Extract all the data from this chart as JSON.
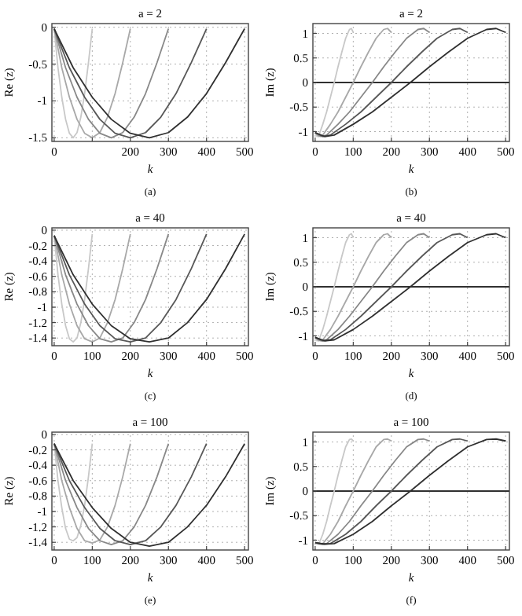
{
  "chart_data": [
    {
      "type": "line",
      "title": "a = 2",
      "xlabel": "k",
      "ylabel": "Re (z)",
      "annotations": [
        "(a)"
      ],
      "xlim": [
        -6,
        510
      ],
      "xticks": [
        0,
        200,
        300,
        400,
        500,
        {
          "value": 100,
          "label": null
        }
      ],
      "ylim": [
        -1.55,
        0.05
      ],
      "yticks": [
        0,
        -0.5,
        -1,
        -1.5
      ],
      "grid": true,
      "series": [
        {
          "color": "#c8c8c8",
          "x": [
            0,
            10,
            20,
            30,
            40,
            50,
            60,
            70,
            80,
            90,
            100
          ],
          "values": [
            -0.02,
            -0.55,
            -0.95,
            -1.25,
            -1.44,
            -1.5,
            -1.43,
            -1.22,
            -0.9,
            -0.48,
            -0.02
          ]
        },
        {
          "color": "#a8a8a8",
          "x": [
            0,
            20,
            40,
            60,
            80,
            100,
            120,
            140,
            160,
            180,
            200
          ],
          "values": [
            -0.02,
            -0.55,
            -0.95,
            -1.25,
            -1.44,
            -1.5,
            -1.43,
            -1.22,
            -0.9,
            -0.48,
            -0.02
          ]
        },
        {
          "color": "#888888",
          "x": [
            0,
            30,
            60,
            90,
            120,
            150,
            180,
            210,
            240,
            270,
            300
          ],
          "values": [
            -0.02,
            -0.55,
            -0.95,
            -1.25,
            -1.44,
            -1.5,
            -1.43,
            -1.22,
            -0.9,
            -0.48,
            -0.02
          ]
        },
        {
          "color": "#585858",
          "x": [
            0,
            40,
            80,
            120,
            160,
            200,
            240,
            280,
            320,
            360,
            400
          ],
          "values": [
            -0.02,
            -0.55,
            -0.95,
            -1.25,
            -1.44,
            -1.5,
            -1.43,
            -1.22,
            -0.9,
            -0.48,
            -0.02
          ]
        },
        {
          "color": "#303030",
          "x": [
            0,
            50,
            100,
            150,
            200,
            250,
            300,
            350,
            400,
            450,
            500
          ],
          "values": [
            -0.02,
            -0.55,
            -0.95,
            -1.25,
            -1.44,
            -1.5,
            -1.43,
            -1.22,
            -0.9,
            -0.48,
            -0.02
          ]
        }
      ]
    },
    {
      "type": "line",
      "title": "a = 2",
      "xlabel": "k",
      "ylabel": "Im (z)",
      "annotations": [
        "(b)"
      ],
      "xlim": [
        -6,
        510
      ],
      "xticks": [
        0,
        100,
        200,
        300,
        400,
        500
      ],
      "ylim": [
        -1.2,
        1.2
      ],
      "yticks": [
        -1,
        -0.5,
        0,
        0.5,
        1
      ],
      "grid": true,
      "ref_lines": [
        {
          "axis": "y",
          "value": 0,
          "color": "#303030"
        }
      ],
      "series": [
        {
          "color": "#c8c8c8",
          "x": [
            0,
            5,
            10,
            20,
            30,
            40,
            50,
            60,
            70,
            80,
            90,
            95,
            100
          ],
          "values": [
            -1.02,
            -1.1,
            -1.07,
            -0.85,
            -0.6,
            -0.3,
            0,
            0.32,
            0.62,
            0.9,
            1.08,
            1.1,
            1.02
          ]
        },
        {
          "color": "#a8a8a8",
          "x": [
            0,
            10,
            20,
            40,
            60,
            80,
            100,
            120,
            140,
            160,
            180,
            190,
            200
          ],
          "values": [
            -1.02,
            -1.1,
            -1.07,
            -0.85,
            -0.6,
            -0.3,
            0,
            0.32,
            0.62,
            0.9,
            1.08,
            1.1,
            1.02
          ]
        },
        {
          "color": "#888888",
          "x": [
            0,
            15,
            30,
            60,
            90,
            120,
            150,
            180,
            210,
            240,
            270,
            285,
            300
          ],
          "values": [
            -1.02,
            -1.1,
            -1.07,
            -0.85,
            -0.6,
            -0.3,
            0,
            0.32,
            0.62,
            0.9,
            1.08,
            1.1,
            1.02
          ]
        },
        {
          "color": "#585858",
          "x": [
            0,
            20,
            40,
            80,
            120,
            160,
            200,
            240,
            280,
            320,
            360,
            380,
            400
          ],
          "values": [
            -1.02,
            -1.1,
            -1.07,
            -0.85,
            -0.6,
            -0.3,
            0,
            0.32,
            0.62,
            0.9,
            1.08,
            1.1,
            1.02
          ]
        },
        {
          "color": "#303030",
          "x": [
            0,
            25,
            50,
            100,
            150,
            200,
            250,
            300,
            350,
            400,
            450,
            475,
            500
          ],
          "values": [
            -1.02,
            -1.1,
            -1.07,
            -0.85,
            -0.6,
            -0.3,
            0,
            0.32,
            0.62,
            0.9,
            1.08,
            1.1,
            1.02
          ]
        }
      ]
    },
    {
      "type": "line",
      "title": "a = 40",
      "xlabel": "k",
      "ylabel": "Re (z)",
      "annotations": [
        "(c)"
      ],
      "xlim": [
        -6,
        510
      ],
      "xticks": [
        0,
        100,
        200,
        300,
        400,
        500
      ],
      "ylim": [
        -1.5,
        0.03
      ],
      "yticks": [
        0,
        -0.2,
        -0.4,
        -0.6,
        -0.8,
        -1,
        -1.2,
        -1.4
      ],
      "grid": true,
      "series": [
        {
          "color": "#c8c8c8",
          "x": [
            0,
            10,
            20,
            30,
            40,
            50,
            60,
            70,
            80,
            90,
            100
          ],
          "values": [
            -0.07,
            -0.58,
            -0.96,
            -1.24,
            -1.41,
            -1.45,
            -1.4,
            -1.2,
            -0.9,
            -0.5,
            -0.05
          ]
        },
        {
          "color": "#a8a8a8",
          "x": [
            0,
            20,
            40,
            60,
            80,
            100,
            120,
            140,
            160,
            180,
            200
          ],
          "values": [
            -0.07,
            -0.58,
            -0.96,
            -1.24,
            -1.41,
            -1.45,
            -1.4,
            -1.2,
            -0.9,
            -0.5,
            -0.05
          ]
        },
        {
          "color": "#888888",
          "x": [
            0,
            30,
            60,
            90,
            120,
            150,
            180,
            210,
            240,
            270,
            300
          ],
          "values": [
            -0.07,
            -0.58,
            -0.96,
            -1.24,
            -1.41,
            -1.45,
            -1.4,
            -1.2,
            -0.9,
            -0.5,
            -0.05
          ]
        },
        {
          "color": "#585858",
          "x": [
            0,
            40,
            80,
            120,
            160,
            200,
            240,
            280,
            320,
            360,
            400
          ],
          "values": [
            -0.07,
            -0.58,
            -0.96,
            -1.24,
            -1.41,
            -1.45,
            -1.4,
            -1.2,
            -0.9,
            -0.5,
            -0.05
          ]
        },
        {
          "color": "#303030",
          "x": [
            0,
            50,
            100,
            150,
            200,
            250,
            300,
            350,
            400,
            450,
            500
          ],
          "values": [
            -0.07,
            -0.58,
            -0.96,
            -1.24,
            -1.41,
            -1.45,
            -1.4,
            -1.2,
            -0.9,
            -0.5,
            -0.05
          ]
        }
      ]
    },
    {
      "type": "line",
      "title": "a = 40",
      "xlabel": "k",
      "ylabel": "Im (z)",
      "annotations": [
        "(d)"
      ],
      "xlim": [
        -6,
        510
      ],
      "xticks": [
        0,
        100,
        200,
        300,
        400,
        500
      ],
      "ylim": [
        -1.2,
        1.2
      ],
      "yticks": [
        -1,
        -0.5,
        0,
        0.5,
        1
      ],
      "grid": true,
      "ref_lines": [
        {
          "axis": "y",
          "value": 0,
          "color": "#303030"
        }
      ],
      "series": [
        {
          "color": "#c8c8c8",
          "x": [
            0,
            5,
            10,
            20,
            30,
            40,
            50,
            60,
            70,
            80,
            90,
            95,
            100
          ],
          "values": [
            -1.03,
            -1.1,
            -1.08,
            -0.87,
            -0.6,
            -0.3,
            0,
            0.32,
            0.62,
            0.9,
            1.06,
            1.08,
            1.0
          ]
        },
        {
          "color": "#a8a8a8",
          "x": [
            0,
            10,
            20,
            40,
            60,
            80,
            100,
            120,
            140,
            160,
            180,
            190,
            200
          ],
          "values": [
            -1.03,
            -1.1,
            -1.08,
            -0.87,
            -0.6,
            -0.3,
            0,
            0.32,
            0.62,
            0.9,
            1.06,
            1.08,
            1.0
          ]
        },
        {
          "color": "#888888",
          "x": [
            0,
            15,
            30,
            60,
            90,
            120,
            150,
            180,
            210,
            240,
            270,
            285,
            300
          ],
          "values": [
            -1.03,
            -1.1,
            -1.08,
            -0.87,
            -0.6,
            -0.3,
            0,
            0.32,
            0.62,
            0.9,
            1.06,
            1.08,
            1.0
          ]
        },
        {
          "color": "#585858",
          "x": [
            0,
            20,
            40,
            80,
            120,
            160,
            200,
            240,
            280,
            320,
            360,
            380,
            400
          ],
          "values": [
            -1.03,
            -1.1,
            -1.08,
            -0.87,
            -0.6,
            -0.3,
            0,
            0.32,
            0.62,
            0.9,
            1.06,
            1.08,
            1.0
          ]
        },
        {
          "color": "#303030",
          "x": [
            0,
            25,
            50,
            100,
            150,
            200,
            250,
            300,
            350,
            400,
            450,
            475,
            500
          ],
          "values": [
            -1.03,
            -1.1,
            -1.08,
            -0.87,
            -0.6,
            -0.3,
            0,
            0.32,
            0.62,
            0.9,
            1.06,
            1.08,
            1.0
          ]
        }
      ]
    },
    {
      "type": "line",
      "title": "a = 100",
      "xlabel": "k",
      "ylabel": "Re (z)",
      "annotations": [
        "(e)"
      ],
      "xlim": [
        -6,
        510
      ],
      "xticks": [
        0,
        100,
        200,
        300,
        400,
        500
      ],
      "ylim": [
        -1.5,
        0.03
      ],
      "yticks": [
        0,
        -0.2,
        -0.4,
        -0.6,
        -0.8,
        -1,
        -1.2,
        -1.4
      ],
      "grid": true,
      "series": [
        {
          "color": "#c8c8c8",
          "x": [
            0,
            10,
            20,
            30,
            40,
            50,
            60,
            70,
            80,
            90,
            100
          ],
          "values": [
            -0.12,
            -0.6,
            -0.95,
            -1.22,
            -1.36,
            -1.38,
            -1.34,
            -1.18,
            -0.92,
            -0.55,
            -0.12
          ]
        },
        {
          "color": "#a8a8a8",
          "x": [
            0,
            20,
            40,
            60,
            80,
            100,
            120,
            140,
            160,
            180,
            200
          ],
          "values": [
            -0.12,
            -0.6,
            -0.95,
            -1.22,
            -1.38,
            -1.41,
            -1.37,
            -1.2,
            -0.92,
            -0.55,
            -0.12
          ]
        },
        {
          "color": "#888888",
          "x": [
            0,
            30,
            60,
            90,
            120,
            150,
            180,
            210,
            240,
            270,
            300
          ],
          "values": [
            -0.12,
            -0.6,
            -0.95,
            -1.22,
            -1.38,
            -1.43,
            -1.38,
            -1.2,
            -0.92,
            -0.55,
            -0.12
          ]
        },
        {
          "color": "#585858",
          "x": [
            0,
            40,
            80,
            120,
            160,
            200,
            240,
            280,
            320,
            360,
            400
          ],
          "values": [
            -0.12,
            -0.6,
            -0.95,
            -1.22,
            -1.38,
            -1.43,
            -1.38,
            -1.2,
            -0.92,
            -0.55,
            -0.12
          ]
        },
        {
          "color": "#303030",
          "x": [
            0,
            50,
            100,
            150,
            200,
            250,
            300,
            350,
            400,
            450,
            500
          ],
          "values": [
            -0.12,
            -0.6,
            -0.95,
            -1.22,
            -1.4,
            -1.45,
            -1.4,
            -1.2,
            -0.92,
            -0.55,
            -0.12
          ]
        }
      ]
    },
    {
      "type": "line",
      "title": "a = 100",
      "xlabel": "k",
      "ylabel": "Im (z)",
      "annotations": [
        "(f)"
      ],
      "xlim": [
        -6,
        510
      ],
      "xticks": [
        0,
        100,
        200,
        300,
        400,
        500
      ],
      "ylim": [
        -1.2,
        1.2
      ],
      "yticks": [
        -1,
        -0.5,
        0,
        0.5,
        1
      ],
      "grid": true,
      "ref_lines": [
        {
          "axis": "y",
          "value": 0,
          "color": "#303030"
        }
      ],
      "series": [
        {
          "color": "#c8c8c8",
          "x": [
            0,
            5,
            10,
            20,
            30,
            40,
            50,
            60,
            70,
            80,
            90,
            95,
            100
          ],
          "values": [
            -1.05,
            -1.08,
            -1.07,
            -0.88,
            -0.62,
            -0.3,
            0,
            0.32,
            0.62,
            0.9,
            1.05,
            1.06,
            1.02
          ]
        },
        {
          "color": "#a8a8a8",
          "x": [
            0,
            10,
            20,
            40,
            60,
            80,
            100,
            120,
            140,
            160,
            180,
            190,
            200
          ],
          "values": [
            -1.05,
            -1.08,
            -1.07,
            -0.88,
            -0.62,
            -0.3,
            0,
            0.32,
            0.62,
            0.9,
            1.05,
            1.06,
            1.02
          ]
        },
        {
          "color": "#888888",
          "x": [
            0,
            15,
            30,
            60,
            90,
            120,
            150,
            180,
            210,
            240,
            270,
            285,
            300
          ],
          "values": [
            -1.05,
            -1.08,
            -1.07,
            -0.88,
            -0.62,
            -0.3,
            0,
            0.32,
            0.62,
            0.9,
            1.05,
            1.06,
            1.02
          ]
        },
        {
          "color": "#585858",
          "x": [
            0,
            20,
            40,
            80,
            120,
            160,
            200,
            240,
            280,
            320,
            360,
            380,
            400
          ],
          "values": [
            -1.05,
            -1.08,
            -1.07,
            -0.88,
            -0.62,
            -0.3,
            0,
            0.32,
            0.62,
            0.9,
            1.05,
            1.06,
            1.02
          ]
        },
        {
          "color": "#303030",
          "x": [
            0,
            25,
            50,
            100,
            150,
            200,
            250,
            300,
            350,
            400,
            450,
            475,
            500
          ],
          "values": [
            -1.05,
            -1.08,
            -1.07,
            -0.88,
            -0.62,
            -0.3,
            0,
            0.32,
            0.62,
            0.9,
            1.05,
            1.06,
            1.02
          ]
        }
      ]
    }
  ]
}
